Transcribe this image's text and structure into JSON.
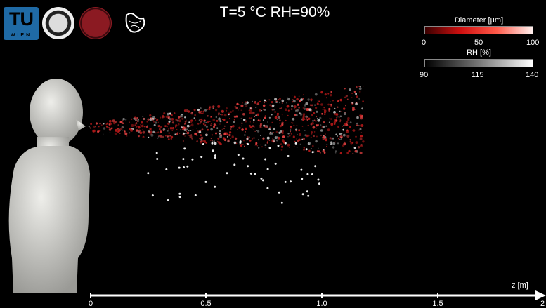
{
  "title": "T=5 °C RH=90%",
  "logos": {
    "tu_wien": {
      "line1": "TU",
      "line2": "WIEN"
    },
    "okinawa": "OKINAWA INSTITUTE OF SCIENCE AND TECHNOLOGY"
  },
  "colorbars": [
    {
      "label": "Diameter [µm]",
      "ticks": [
        "0",
        "50",
        "100"
      ],
      "colors": [
        "#3a0000",
        "#d01010",
        "#ff5a4a",
        "#fff0ee"
      ]
    },
    {
      "label": "RH [%]",
      "ticks": [
        "90",
        "115",
        "140"
      ],
      "colors": [
        "#000000",
        "#777777",
        "#ffffff"
      ]
    }
  ],
  "axis": {
    "label": "z [m]",
    "ticks": [
      "0",
      "0.5",
      "1.0",
      "1.5",
      "2"
    ]
  }
}
